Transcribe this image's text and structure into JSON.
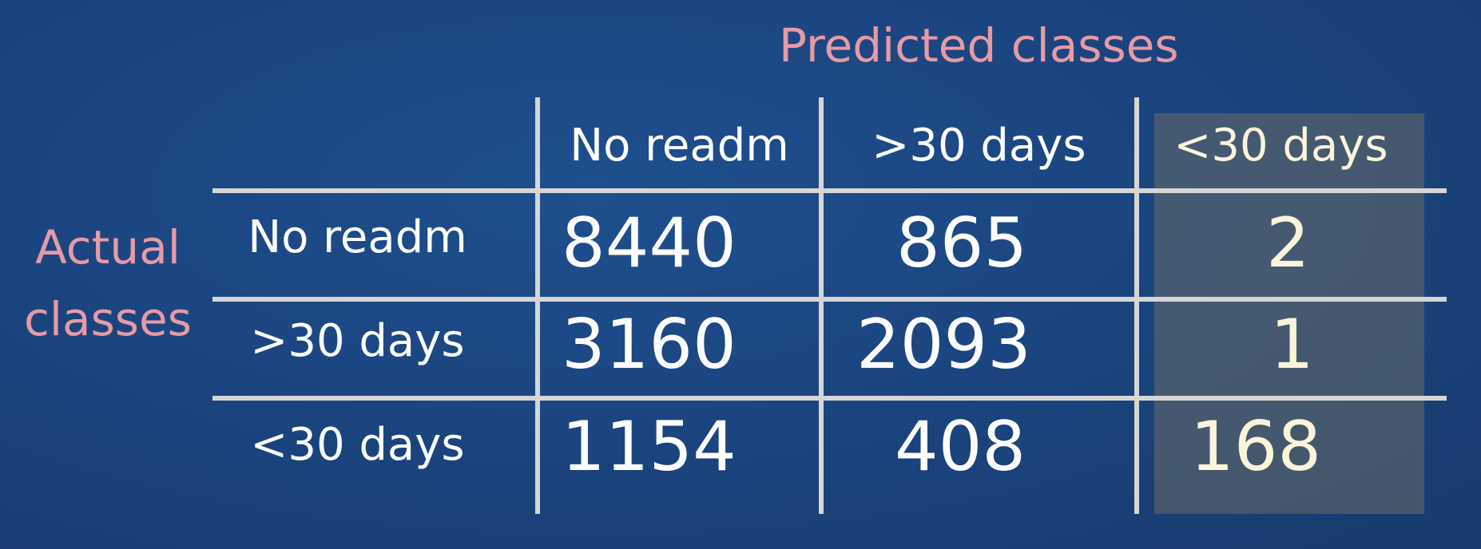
{
  "chart_data": {
    "type": "table",
    "title": "Predicted classes",
    "row_axis_label": "Actual classes",
    "col_axis_label": "Predicted classes",
    "columns": [
      "No readm",
      ">30 days",
      "<30 days"
    ],
    "rows": [
      {
        "label": "No readm",
        "values": [
          "8440",
          "865",
          "2"
        ]
      },
      {
        "label": ">30 days",
        "values": [
          "3160",
          "2093",
          "1"
        ]
      },
      {
        "label": "<30 days",
        "values": [
          "1154",
          "408",
          "168"
        ]
      }
    ],
    "highlighted_column": "<30 days"
  },
  "labels": {
    "actual_line1": "Actual",
    "actual_line2": "classes"
  },
  "colors": {
    "background": "#1b4580",
    "axis_title": "#e79aa5",
    "grid": "#d6d6d6",
    "highlight": "#7a7664"
  }
}
